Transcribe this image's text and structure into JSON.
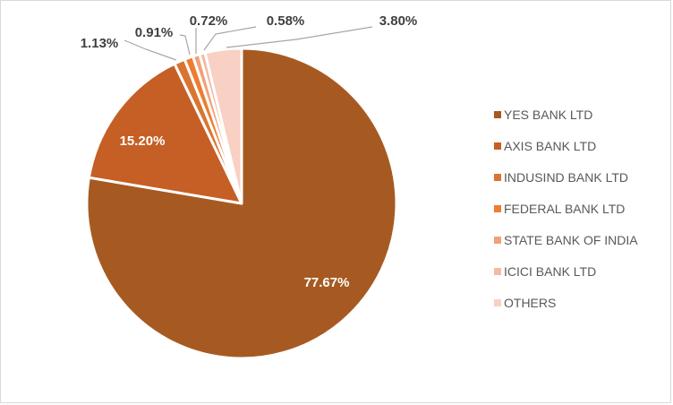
{
  "chart_data": {
    "type": "pie",
    "categories": [
      "YES BANK LTD",
      "AXIS BANK LTD",
      "INDUSIND BANK LTD",
      "FEDERAL BANK LTD",
      "STATE BANK OF INDIA",
      "ICICI BANK LTD",
      "OTHERS"
    ],
    "values": [
      77.67,
      15.2,
      1.13,
      0.91,
      0.72,
      0.58,
      3.8
    ],
    "data_labels": [
      "77.67%",
      "15.20%",
      "1.13%",
      "0.91%",
      "0.72%",
      "0.58%",
      "3.80%"
    ],
    "colors": [
      "#a65a22",
      "#c55f25",
      "#d97530",
      "#ed7d31",
      "#f1a07b",
      "#f4b9a5",
      "#f8d0c4"
    ],
    "start_angle_deg": 0,
    "direction": "clockwise",
    "legend_position": "right"
  }
}
